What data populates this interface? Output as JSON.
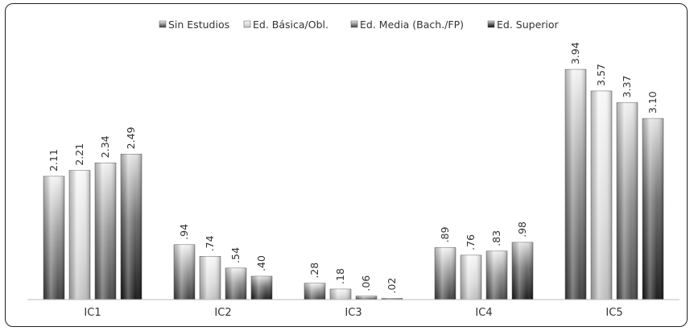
{
  "chart_data": {
    "type": "bar",
    "categories": [
      "IC1",
      "IC2",
      "IC3",
      "IC4",
      "IC5"
    ],
    "series": [
      {
        "name": "Sin Estudios",
        "values": [
          2.11,
          0.94,
          0.28,
          0.89,
          3.94
        ],
        "labels": [
          "2.11",
          ".94",
          ".28",
          ".89",
          "3.94"
        ],
        "color": "#4a4a4a"
      },
      {
        "name": "Ed. Básica/Obl.",
        "values": [
          2.21,
          0.74,
          0.18,
          0.76,
          3.57
        ],
        "labels": [
          "2.21",
          ".74",
          ".18",
          ".76",
          "3.57"
        ],
        "color": "#d4d4d4"
      },
      {
        "name": "Ed. Media (Bach./FP)",
        "values": [
          2.34,
          0.54,
          0.06,
          0.83,
          3.37
        ],
        "labels": [
          "2.34",
          ".54",
          ".06",
          ".83",
          "3.37"
        ],
        "color": "#8a8a8a"
      },
      {
        "name": "Ed. Superior",
        "values": [
          2.49,
          0.4,
          0.02,
          0.98,
          3.1
        ],
        "labels": [
          "2.49",
          ".40",
          ".02",
          ".98",
          "3.10"
        ],
        "color": "#1a1a1a"
      }
    ],
    "title": "",
    "xlabel": "",
    "ylabel": "",
    "ylim": [
      0,
      4.3
    ],
    "grid": false,
    "legend": "top"
  }
}
